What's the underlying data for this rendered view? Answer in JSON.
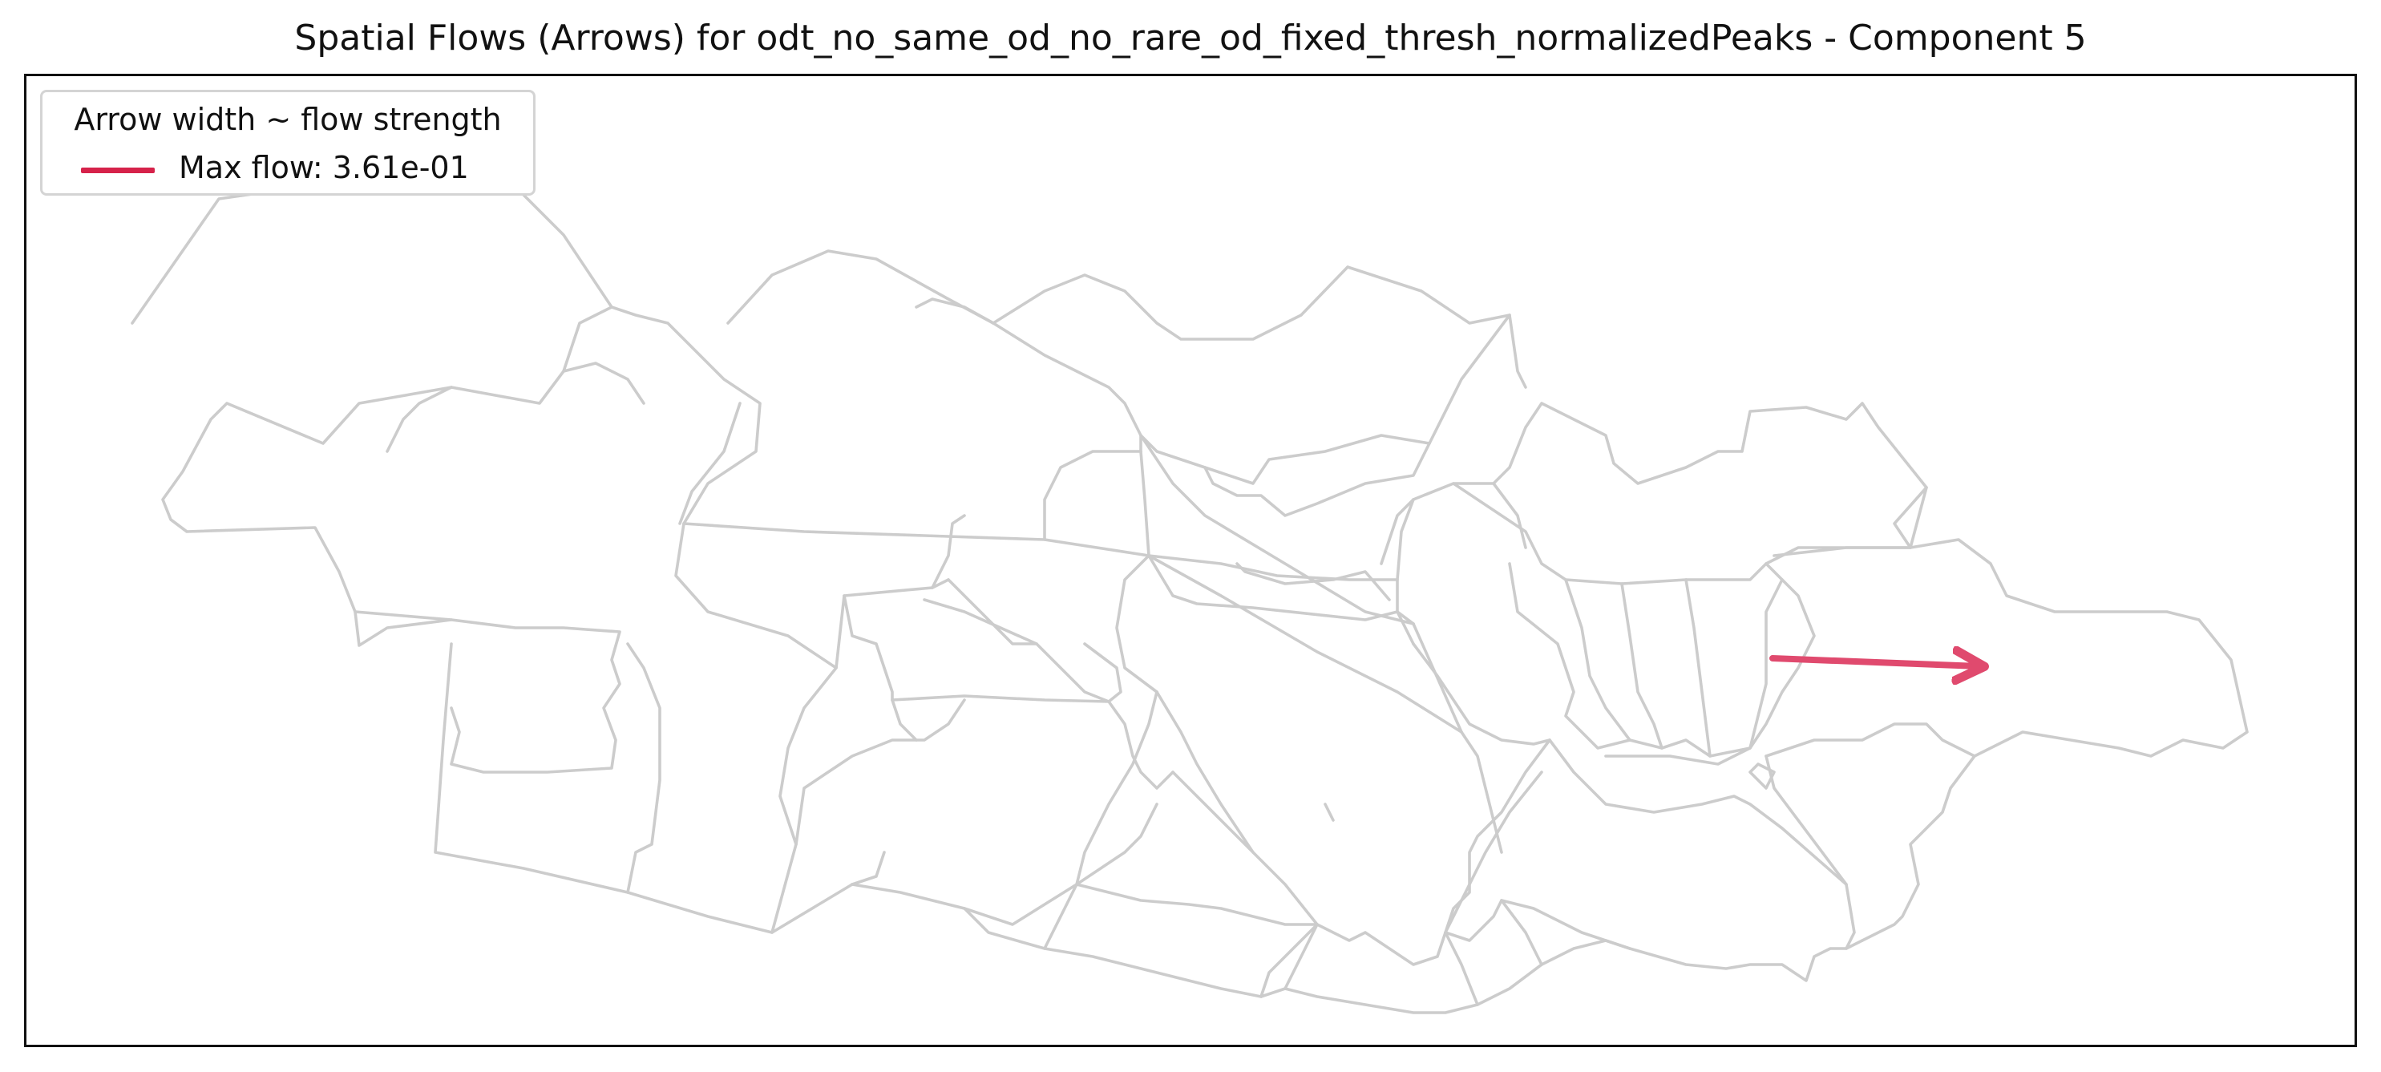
{
  "figure": {
    "title": "Spatial Flows (Arrows) for odt_no_same_od_no_rare_od_fixed_thresh_normalizedPeaks - Component 5"
  },
  "legend": {
    "title": "Arrow width ~ flow strength",
    "entry_label": "Max flow: 3.61e-01"
  },
  "colors": {
    "flow_arrow": "#d6224a",
    "district_outline": "#cccccc",
    "frame": "#111111"
  },
  "chart_data": {
    "type": "flow-map",
    "title": "Spatial Flows (Arrows) for odt_no_same_od_no_rare_od_fixed_thresh_normalizedPeaks - Component 5",
    "legend_placement": "top-left",
    "max_flow": 0.361,
    "flows": [
      {
        "from": "east-central district",
        "to": "far-east district",
        "strength": 0.361
      }
    ],
    "grid": false,
    "axes_ticks": false
  }
}
